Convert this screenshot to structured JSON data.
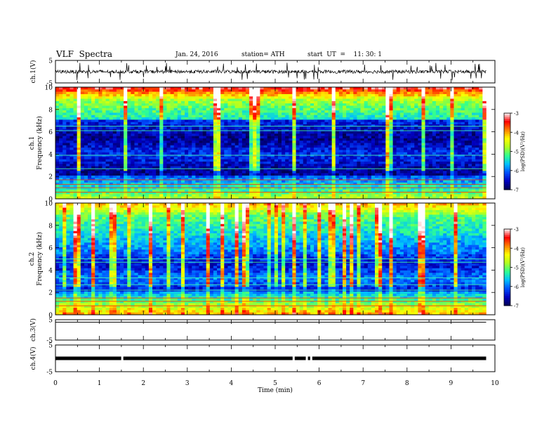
{
  "header": {
    "title": "VLF  Spectra",
    "date": "Jan. 24, 2016",
    "station": "station= ATH",
    "start": "start  UT  =    11: 30: 1"
  },
  "colors": {
    "background": "#ffffff",
    "axis": "#000000",
    "colormap": [
      "#000050",
      "#0000c0",
      "#0050ff",
      "#00c0ff",
      "#30ff90",
      "#b0ff20",
      "#ffff00",
      "#ff8000",
      "#ff0000",
      "#ffffff"
    ]
  },
  "chart_data": [
    {
      "type": "line",
      "name": "ch.1 waveform",
      "ylabel": "ch.1(V)",
      "ylim": [
        -5,
        5
      ],
      "yticks": [
        "5",
        "-5"
      ],
      "xlim": [
        0,
        10
      ],
      "data_extent_min": [
        0,
        9.8
      ],
      "baseline": 0,
      "amplitude": 1.5
    },
    {
      "type": "heatmap",
      "name": "ch.1 spectrogram",
      "ylabel": "ch.1\nFrequency (kHz)",
      "ylabel_channel": "ch.1",
      "ylabel_quantity": "Frequency (kHz)",
      "ylim": [
        0,
        10
      ],
      "yticks": [
        "0",
        "2",
        "4",
        "6",
        "8",
        "10"
      ],
      "xlim": [
        0,
        10
      ],
      "colorbar": {
        "label": "log(PSD)(V²/Hz)",
        "range": [
          -7,
          -3
        ],
        "ticks": [
          "-3",
          "-4",
          "-5",
          "-6",
          "-7"
        ]
      }
    },
    {
      "type": "heatmap",
      "name": "ch.2 spectrogram",
      "ylabel": "ch.2\nFrequency (kHz)",
      "ylabel_channel": "ch.2",
      "ylabel_quantity": "Frequency (kHz)",
      "ylim": [
        0,
        10
      ],
      "yticks": [
        "0",
        "2",
        "4",
        "6",
        "8",
        "10"
      ],
      "xlim": [
        0,
        10
      ],
      "colorbar": {
        "label": "log(PSD)(V²/Hz)",
        "range": [
          -7,
          -3
        ],
        "ticks": [
          "-3",
          "-4",
          "-5",
          "-6",
          "-7"
        ]
      }
    },
    {
      "type": "line",
      "name": "ch.3 waveform",
      "ylabel": "ch.3(V)",
      "ylim": [
        -5,
        5
      ],
      "yticks": [
        "5",
        "-5"
      ],
      "xlim": [
        0,
        10
      ],
      "baseline": 4.8
    },
    {
      "type": "line",
      "name": "ch.4 waveform",
      "ylabel": "ch.4(V)",
      "ylim": [
        -5,
        5
      ],
      "yticks": [
        "5",
        "-5"
      ],
      "xlim": [
        0,
        10
      ],
      "baseline": 0,
      "gaps_min": [
        1.52,
        5.42,
        5.72,
        5.82
      ]
    }
  ],
  "xaxis": {
    "label": "Time  (min)",
    "ticks": [
      "0",
      "1",
      "2",
      "3",
      "4",
      "5",
      "6",
      "7",
      "8",
      "9",
      "10"
    ]
  }
}
